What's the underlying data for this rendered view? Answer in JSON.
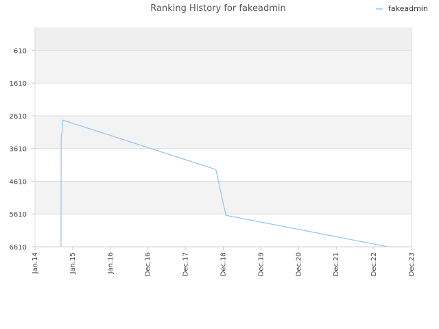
{
  "chart_data": {
    "type": "line",
    "title": "Ranking History for fakeadmin",
    "xlabel": "",
    "ylabel": "",
    "y_inverted": true,
    "ylim": [
      -90,
      6610
    ],
    "y_ticks": [
      610,
      1610,
      2610,
      3610,
      4610,
      5610,
      6610
    ],
    "x_tick_labels": [
      "Jan.14",
      "Jan.15",
      "Jan.16",
      "Dec.16",
      "Dec.17",
      "Dec.18",
      "Dec.19",
      "Dec.20",
      "Dec.21",
      "Dec.22",
      "Dec.23"
    ],
    "grid": true,
    "legend": {
      "position": "top-right"
    },
    "series": [
      {
        "name": "fakeadmin",
        "color": "#90c4f0",
        "x": [
          "2014-09-10",
          "2014-09-12",
          "2014-09-15",
          "2014-09-20",
          "2014-09-24",
          "2014-09-28",
          "2018-10-20",
          "2019-01-25",
          "2023-05-15"
        ],
        "y": [
          6610,
          3310,
          3150,
          3130,
          2970,
          2740,
          4250,
          5650,
          6610
        ]
      }
    ]
  }
}
